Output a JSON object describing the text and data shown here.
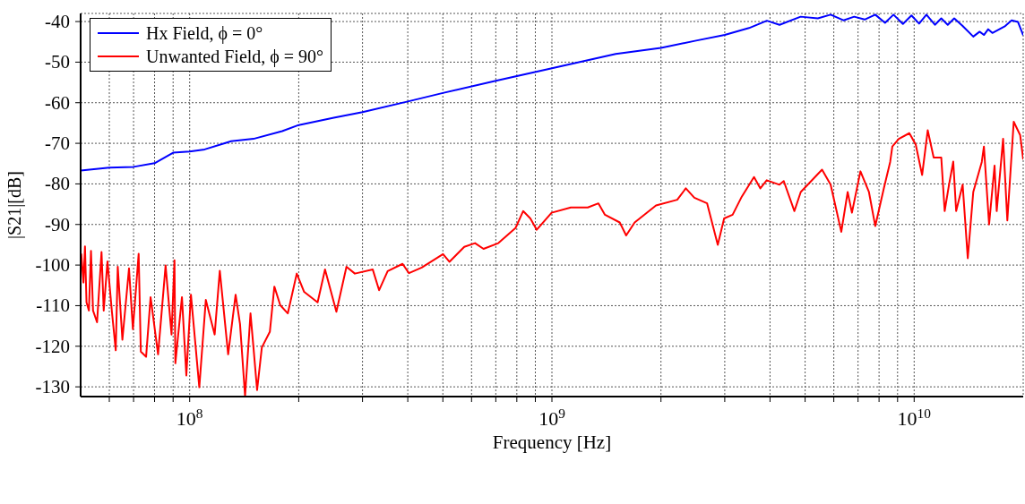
{
  "chart_data": {
    "type": "line",
    "xlabel": "Frequency [Hz]",
    "ylabel": "|S21|[dB]",
    "log": "x",
    "grid": true,
    "legend": "top left",
    "line_style": "solid",
    "xlim": [
      50000000.0,
      20000000000.0
    ],
    "ylim": [
      -132.4,
      -38
    ],
    "xticks": [
      {
        "value": 60000000.0,
        "label": null
      },
      {
        "value": 70000000.0,
        "label": null
      },
      {
        "value": 80000000.0,
        "label": null
      },
      {
        "value": 90000000.0,
        "label": null
      },
      {
        "value": 100000000.0,
        "label": "10$^{8}$"
      },
      {
        "value": 200000000.0,
        "label": null
      },
      {
        "value": 300000000.0,
        "label": null
      },
      {
        "value": 400000000.0,
        "label": null
      },
      {
        "value": 500000000.0,
        "label": null
      },
      {
        "value": 600000000.0,
        "label": null
      },
      {
        "value": 700000000.0,
        "label": null
      },
      {
        "value": 800000000.0,
        "label": null
      },
      {
        "value": 900000000.0,
        "label": null
      },
      {
        "value": 1000000000.0,
        "label": "10$^{9}$"
      },
      {
        "value": 2000000000.0,
        "label": null
      },
      {
        "value": 3000000000.0,
        "label": null
      },
      {
        "value": 4000000000.0,
        "label": null
      },
      {
        "value": 5000000000.0,
        "label": null
      },
      {
        "value": 6000000000.0,
        "label": null
      },
      {
        "value": 7000000000.0,
        "label": null
      },
      {
        "value": 8000000000.0,
        "label": null
      },
      {
        "value": 9000000000.0,
        "label": null
      },
      {
        "value": 10000000000.0,
        "label": "10$^{10}$"
      }
    ],
    "yticks": [
      -40,
      -50,
      -60,
      -70,
      -80,
      -90,
      -100,
      -110,
      -120,
      -130
    ],
    "series": [
      {
        "name": "Hx Field, ϕ = 0°",
        "color": "#0000ff",
        "x": [
          50000000.0,
          60000000.0,
          70000000.0,
          80000000.0,
          90000000.0,
          100000000.0,
          110000000.0,
          130000000.0,
          150000000.0,
          180000000.0,
          200000000.0,
          250000000.0,
          300000000.0,
          400000000.0,
          500000000.0,
          700000000.0,
          1000000000.0,
          1500000000.0,
          2000000000.0,
          2500000000.0,
          3000000000.0,
          3500000000.0,
          3920000000.0,
          4250000000.0,
          4860000000.0,
          5420000000.0,
          5880000000.0,
          6380000000.0,
          6830000000.0,
          7300000000.0,
          7810000000.0,
          8310000000.0,
          8770000000.0,
          9310000000.0,
          9830000000.0,
          10320000000.0,
          10810000000.0,
          11410000000.0,
          11880000000.0,
          12380000000.0,
          12900000000.0,
          13610000000.0,
          14560000000.0,
          15160000000.0,
          15580000000.0,
          16010000000.0,
          16440000000.0,
          17840000000.0,
          18580000000.0,
          19350000000.0,
          20000000000.0
        ],
        "values": [
          -76.7,
          -76,
          -75.8,
          -74.9,
          -72.3,
          -72,
          -71.5,
          -69.5,
          -68.9,
          -67,
          -65.5,
          -63.7,
          -62.3,
          -59.7,
          -57.6,
          -54.6,
          -51.5,
          -48,
          -46.5,
          -44.7,
          -43.3,
          -41.6,
          -39.8,
          -40.8,
          -38.8,
          -39.2,
          -38.3,
          -39.7,
          -38.8,
          -39.5,
          -38.3,
          -40.3,
          -38.3,
          -40.6,
          -38.5,
          -40.5,
          -38.3,
          -40.8,
          -39.2,
          -40.8,
          -39.2,
          -41.1,
          -43.7,
          -42.5,
          -43.3,
          -41.9,
          -42.8,
          -41.1,
          -39.7,
          -40.1,
          -43.4
        ]
      },
      {
        "name": "Unwanted Field, ϕ = 90°",
        "color": "#ff0000",
        "x": [
          50200000.0,
          50900000.0,
          51400000.0,
          51900000.0,
          52700000.0,
          53400000.0,
          54100000.0,
          55500000.0,
          57100000.0,
          57900000.0,
          59300000.0,
          61000000.0,
          62500000.0,
          63300000.0,
          65200000.0,
          68000000.0,
          69700000.0,
          72300000.0,
          73300000.0,
          75800000.0,
          78000000.0,
          81800000.0,
          85800000.0,
          89100000.0,
          90800000.0,
          91300000.0,
          95200000.0,
          97900000.0,
          100800000.0,
          106300000.0,
          110800000.0,
          117200000.0,
          121100000.0,
          127700000.0,
          133900000.0,
          137700000.0,
          142200000.0,
          147200000.0,
          150000000.0,
          153500000.0,
          158200000.0,
          166500000.0,
          171300000.0,
          177900000.0,
          186600000.0,
          197500000.0,
          207000000.0,
          225500000.0,
          236400000.0,
          254100000.0,
          270900000.0,
          285800000.0,
          320200000.0,
          333400000.0,
          352000000.0,
          387000000.0,
          403000000.0,
          437100000.0,
          500500000.0,
          521200000.0,
          572800000.0,
          613400000.0,
          647400000.0,
          711500000.0,
          793100000.0,
          832800000.0,
          871800000.0,
          907800000.0,
          998000000.0,
          1128000000.0,
          1256000000.0,
          1344000000.0,
          1401000000.0,
          1539000000.0,
          1603000000.0,
          1692000000.0,
          1938000000.0,
          2218000000.0,
          2342000000.0,
          2473000000.0,
          2682000000.0,
          2870000000.0,
          2988000000.0,
          3154000000.0,
          3331000000.0,
          3613000000.0,
          3762000000.0,
          3917000000.0,
          4248000000.0,
          4365000000.0,
          4671000000.0,
          4863000000.0,
          5568000000.0,
          5880000000.0,
          6293000000.0,
          6553000000.0,
          6733000000.0,
          7107000000.0,
          7502000000.0,
          7810000000.0,
          8246000000.0,
          8585000000.0,
          8705000000.0,
          9070000000.0,
          9700000000.0,
          10100000000.0,
          10520000000.0,
          10900000000.0,
          11320000000.0,
          11880000000.0,
          12140000000.0,
          12480000000.0,
          12820000000.0,
          13060000000.0,
          13610000000.0,
          14060000000.0,
          14560000000.0,
          15370000000.0,
          15580000000.0,
          16100000000.0,
          16670000000.0,
          16900000000.0,
          17600000000.0,
          18080000000.0,
          18830000000.0,
          19620000000.0,
          20000000000.0
        ],
        "values": [
          -97.2,
          -104.3,
          -95.4,
          -109.2,
          -111.2,
          -96.5,
          -111.2,
          -114.1,
          -96.8,
          -111.2,
          -99.1,
          -111.5,
          -121,
          -100.4,
          -118.4,
          -100.8,
          -115.8,
          -97.2,
          -121.3,
          -122.6,
          -107.9,
          -122,
          -100.1,
          -117.1,
          -98.8,
          -124.2,
          -107.9,
          -127.2,
          -107.3,
          -130.1,
          -108.6,
          -117.1,
          -101.4,
          -122,
          -107.3,
          -114.5,
          -132.3,
          -111.9,
          -120.3,
          -130.8,
          -120.3,
          -116.4,
          -105.3,
          -109.9,
          -111.9,
          -102.1,
          -106.6,
          -109.2,
          -101.1,
          -111.5,
          -100.4,
          -102.1,
          -101.1,
          -106.2,
          -101.5,
          -99.7,
          -102,
          -100.6,
          -97.3,
          -99.2,
          -95.5,
          -94.6,
          -96,
          -94.6,
          -90.9,
          -86.7,
          -88.5,
          -91.3,
          -87.1,
          -85.8,
          -85.8,
          -84.8,
          -87.6,
          -89.5,
          -92.7,
          -89.5,
          -85.3,
          -83.9,
          -81.1,
          -83.4,
          -84.8,
          -95,
          -88.5,
          -87.6,
          -83.4,
          -78.3,
          -81.1,
          -79.1,
          -80.2,
          -79.3,
          -86.7,
          -82,
          -76.5,
          -80.2,
          -91.8,
          -82,
          -87.1,
          -76.9,
          -82,
          -90.4,
          -81.1,
          -74.6,
          -70.8,
          -68.9,
          -67.5,
          -70.3,
          -77.8,
          -66.8,
          -73.5,
          -73.5,
          -86.7,
          -80.2,
          -74.5,
          -86.7,
          -80.2,
          -98.3,
          -82,
          -74.6,
          -70.8,
          -90,
          -75.5,
          -86.7,
          -68.9,
          -89,
          -64.7,
          -68,
          -74
        ]
      }
    ]
  }
}
